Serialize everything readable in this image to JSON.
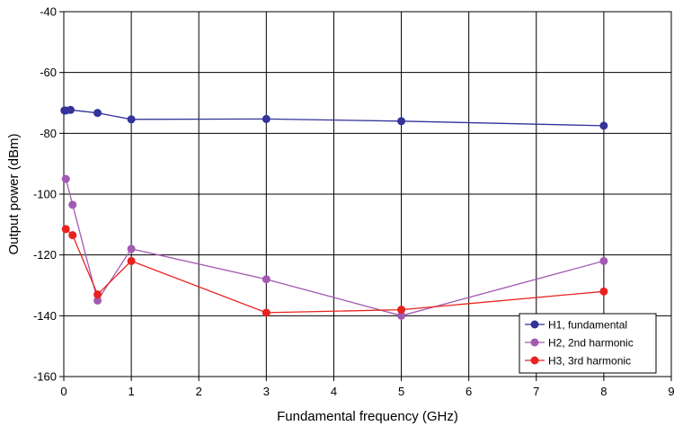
{
  "chart_data": {
    "type": "line",
    "title": "",
    "xlabel": "Fundamental frequency (GHz)",
    "ylabel": "Output power (dBm)",
    "xlim": [
      0,
      9
    ],
    "ylim": [
      -160,
      -40
    ],
    "xticks": [
      0,
      1,
      2,
      3,
      4,
      5,
      6,
      7,
      8,
      9
    ],
    "yticks": [
      -160,
      -140,
      -120,
      -100,
      -80,
      -60,
      -40
    ],
    "grid": true,
    "legend_position": "bottom-right",
    "series": [
      {
        "name": "H1, fundamental",
        "color": "#33339a",
        "x": [
          0.01,
          0.03,
          0.1,
          0.5,
          1,
          3,
          5,
          8
        ],
        "y": [
          -72.5,
          -72.5,
          -72.3,
          -73.3,
          -75.4,
          -75.3,
          -76,
          -77.5
        ]
      },
      {
        "name": "H2, 2nd harmonic",
        "color": "#a35ab2",
        "x": [
          0.03,
          0.13,
          0.5,
          1,
          3,
          5,
          8
        ],
        "y": [
          -95,
          -103.5,
          -135,
          -118,
          -128,
          -140,
          -122
        ]
      },
      {
        "name": "H3, 3rd harmonic",
        "color": "#e8231f",
        "x": [
          0.03,
          0.13,
          0.5,
          1,
          3,
          5,
          8
        ],
        "y": [
          -111.5,
          -113.5,
          -133,
          -122,
          -139,
          -138,
          -132
        ]
      }
    ]
  }
}
